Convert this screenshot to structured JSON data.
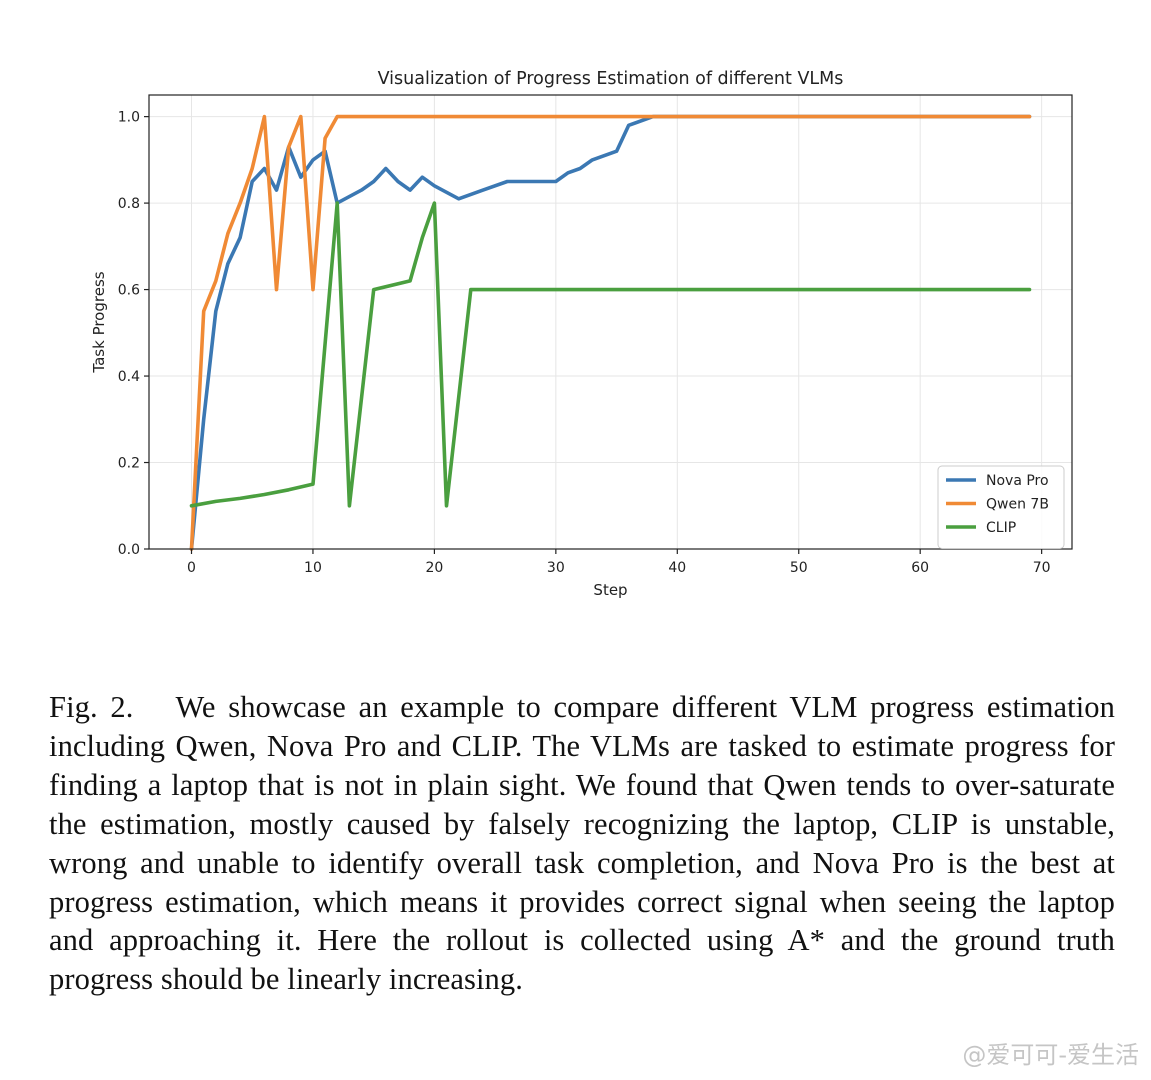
{
  "chart_data": {
    "type": "line",
    "title": "Visualization of Progress Estimation of different VLMs",
    "xlabel": "Step",
    "ylabel": "Task Progress",
    "xlim": [
      -3.5,
      72.5
    ],
    "ylim": [
      0.0,
      1.05
    ],
    "xticks": [
      0,
      10,
      20,
      30,
      40,
      50,
      60,
      70
    ],
    "yticks": [
      0.0,
      0.2,
      0.4,
      0.6,
      0.8,
      1.0
    ],
    "grid": true,
    "legend_position": "lower-right",
    "series": [
      {
        "name": "Nova Pro",
        "color": "#3b78b3",
        "points": [
          [
            0,
            0.0
          ],
          [
            1,
            0.3
          ],
          [
            2,
            0.55
          ],
          [
            3,
            0.66
          ],
          [
            4,
            0.72
          ],
          [
            5,
            0.85
          ],
          [
            6,
            0.88
          ],
          [
            7,
            0.83
          ],
          [
            8,
            0.93
          ],
          [
            9,
            0.86
          ],
          [
            10,
            0.9
          ],
          [
            11,
            0.92
          ],
          [
            12,
            0.8
          ],
          [
            14,
            0.83
          ],
          [
            15,
            0.85
          ],
          [
            16,
            0.88
          ],
          [
            17,
            0.85
          ],
          [
            18,
            0.83
          ],
          [
            19,
            0.86
          ],
          [
            20,
            0.84
          ],
          [
            22,
            0.81
          ],
          [
            24,
            0.83
          ],
          [
            26,
            0.85
          ],
          [
            30,
            0.85
          ],
          [
            31,
            0.87
          ],
          [
            32,
            0.88
          ],
          [
            33,
            0.9
          ],
          [
            35,
            0.92
          ],
          [
            36,
            0.98
          ],
          [
            38,
            1.0
          ],
          [
            69,
            1.0
          ]
        ]
      },
      {
        "name": "Qwen 7B",
        "color": "#f08a35",
        "points": [
          [
            0,
            0.0
          ],
          [
            1,
            0.55
          ],
          [
            2,
            0.62
          ],
          [
            3,
            0.73
          ],
          [
            4,
            0.8
          ],
          [
            5,
            0.88
          ],
          [
            6,
            1.0
          ],
          [
            7,
            0.6
          ],
          [
            8,
            0.93
          ],
          [
            9,
            1.0
          ],
          [
            10,
            0.6
          ],
          [
            11,
            0.95
          ],
          [
            12,
            1.0
          ],
          [
            69,
            1.0
          ]
        ]
      },
      {
        "name": "CLIP",
        "color": "#4a9f3f",
        "points": [
          [
            0,
            0.1
          ],
          [
            2,
            0.11
          ],
          [
            4,
            0.117
          ],
          [
            6,
            0.126
          ],
          [
            8,
            0.137
          ],
          [
            10,
            0.15
          ],
          [
            12,
            0.8
          ],
          [
            13,
            0.1
          ],
          [
            15,
            0.6
          ],
          [
            18,
            0.62
          ],
          [
            19,
            0.72
          ],
          [
            20,
            0.8
          ],
          [
            21,
            0.1
          ],
          [
            23,
            0.6
          ],
          [
            69,
            0.6
          ]
        ]
      }
    ]
  },
  "caption": {
    "fig_label": "Fig. 2.",
    "text": "We showcase an example to compare different VLM progress estimation including Qwen, Nova Pro and CLIP. The VLMs are tasked to estimate progress for finding a laptop that is not in plain sight. We found that Qwen tends to over-saturate the estimation, mostly caused by falsely recognizing the laptop, CLIP is unstable, wrong and unable to identify overall task completion, and Nova Pro is the best at progress estimation, which means it provides correct signal when seeing the laptop and approaching it. Here the rollout is collected using A* and the ground truth progress should be linearly increasing."
  },
  "watermark": "@爱可可-爱生活"
}
